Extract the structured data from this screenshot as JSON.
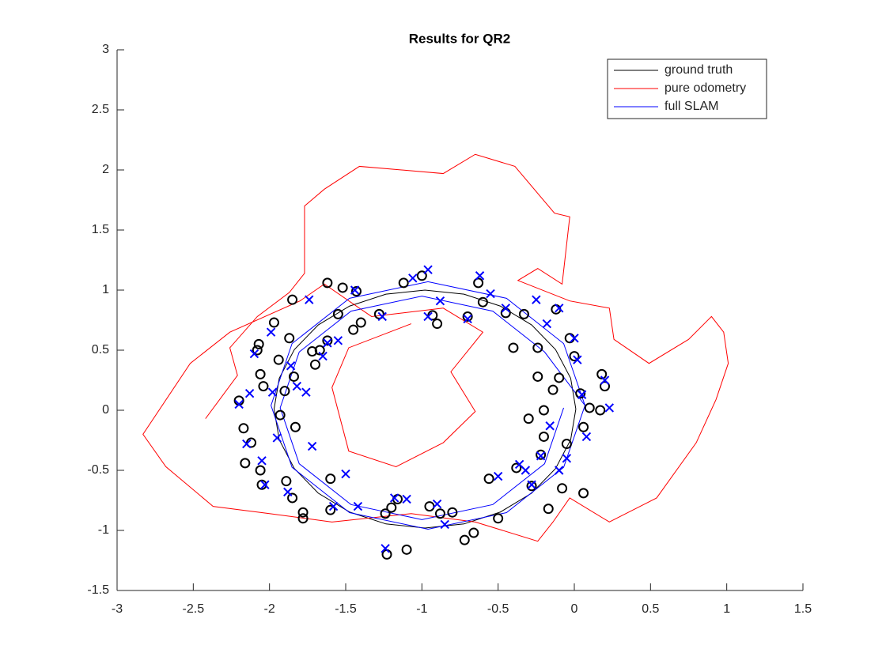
{
  "chart_data": {
    "type": "line",
    "title": "Results for QR2",
    "xlim": [
      -3,
      1.5
    ],
    "ylim": [
      -1.5,
      3
    ],
    "xticks": [
      -3,
      -2.5,
      -2,
      -1.5,
      -1,
      -0.5,
      0,
      0.5,
      1,
      1.5
    ],
    "yticks": [
      -1.5,
      -1,
      -0.5,
      0,
      0.5,
      1,
      1.5,
      2,
      2.5,
      3
    ],
    "grid": false,
    "legend": "northeast",
    "series": [
      {
        "name": "ground truth",
        "color": "#000000",
        "x": [
          0.01,
          -0.024,
          -0.123,
          -0.28,
          -0.485,
          -0.724,
          -0.98,
          -1.236,
          -1.475,
          -1.68,
          -1.837,
          -1.936,
          -1.97,
          -1.936,
          -1.837,
          -1.68,
          -1.475,
          -1.236,
          -0.98,
          -0.724,
          -0.485,
          -0.28,
          -0.123,
          -0.024,
          0.01
        ],
        "y": [
          0.01,
          0.266,
          0.505,
          0.71,
          0.867,
          0.966,
          1.0,
          0.966,
          0.867,
          0.71,
          0.505,
          0.266,
          0.01,
          -0.246,
          -0.485,
          -0.69,
          -0.847,
          -0.946,
          -0.98,
          -0.946,
          -0.847,
          -0.69,
          -0.485,
          -0.246,
          0.01
        ]
      },
      {
        "name": "pure odometry",
        "color": "#ff0000",
        "x": [
          -2.42,
          -2.21,
          -2.26,
          -2.08,
          -1.87,
          -1.77,
          -1.77,
          -1.64,
          -1.41,
          -0.86,
          -0.65,
          -0.39,
          -0.13,
          -0.03,
          -0.08,
          -0.24,
          -0.37,
          -0.03,
          0.23,
          0.26,
          0.49,
          0.75,
          0.9,
          0.98,
          1.01,
          0.93,
          0.8,
          0.54,
          0.23,
          -0.03,
          -0.14,
          -0.24,
          -0.65,
          -1.07,
          -1.59,
          -2.0,
          -2.37,
          -2.68,
          -2.83,
          -2.52,
          -2.26,
          -1.8,
          -1.64,
          -1.33,
          -0.86,
          -0.6,
          -0.81,
          -0.65,
          -0.86,
          -1.17,
          -1.48,
          -1.59,
          -1.48,
          -1.07
        ],
        "y": [
          -0.07,
          0.29,
          0.52,
          0.78,
          0.98,
          1.14,
          1.7,
          1.84,
          2.03,
          1.97,
          2.13,
          2.03,
          1.64,
          1.61,
          1.05,
          1.18,
          1.08,
          0.91,
          0.85,
          0.59,
          0.39,
          0.59,
          0.78,
          0.65,
          0.39,
          0.09,
          -0.27,
          -0.73,
          -0.93,
          -0.73,
          -0.93,
          -1.09,
          -0.93,
          -0.86,
          -0.93,
          -0.86,
          -0.8,
          -0.47,
          -0.2,
          0.39,
          0.65,
          0.91,
          1.05,
          0.78,
          0.85,
          0.65,
          0.32,
          -0.01,
          -0.27,
          -0.47,
          -0.34,
          0.19,
          0.52,
          0.72
        ]
      },
      {
        "name": "full SLAM",
        "color": "#0000ff",
        "x": [
          0.07,
          -0.07,
          -0.445,
          -0.96,
          -1.475,
          -1.852,
          -1.99,
          -1.852,
          -1.475,
          -0.96,
          -0.445,
          -0.07,
          0.07,
          -0.195,
          -0.535,
          -1.0,
          -1.465,
          -1.805,
          -1.93,
          -1.805,
          -1.465,
          -1.0,
          -0.535,
          -0.195,
          -0.07
        ],
        "y": [
          0.04,
          0.555,
          0.932,
          1.07,
          0.932,
          0.555,
          0.04,
          -0.475,
          -0.852,
          -0.99,
          -0.852,
          -0.475,
          0.04,
          0.485,
          0.825,
          0.95,
          0.825,
          0.485,
          0.02,
          -0.445,
          -0.785,
          -0.91,
          -0.785,
          -0.445,
          0.02
        ]
      }
    ],
    "markers": [
      {
        "color": "#000000",
        "marker": "o",
        "x": [
          -2.2,
          -2.17,
          -2.12,
          -2.16,
          -2.06,
          -2.05,
          -2.08,
          -2.07,
          -2.06,
          -2.04,
          -1.97,
          -1.94,
          -1.93,
          -1.9,
          -1.87,
          -1.85,
          -1.84,
          -1.83,
          -1.89,
          -1.85,
          -1.78,
          -1.78,
          -1.72,
          -1.7,
          -1.67,
          -1.62,
          -1.62,
          -1.6,
          -1.6,
          -1.55,
          -1.52,
          -1.45,
          -1.43,
          -1.4,
          -1.28,
          -1.24,
          -1.23,
          -1.2,
          -1.16,
          -1.12,
          -1.1,
          -1.0,
          -0.95,
          -0.93,
          -0.9,
          -0.88,
          -0.8,
          -0.72,
          -0.7,
          -0.66,
          -0.63,
          -0.6,
          -0.56,
          -0.5,
          -0.45,
          -0.4,
          -0.38,
          -0.33,
          -0.28,
          -0.24,
          -0.24,
          -0.22,
          -0.2,
          -0.17,
          -0.14,
          -0.12,
          -0.1,
          -0.08,
          -0.05,
          -0.03,
          0.0,
          0.04,
          0.06,
          0.06,
          0.1,
          0.17,
          0.18,
          0.2,
          -0.3,
          -0.2
        ],
        "y": [
          0.08,
          -0.15,
          -0.27,
          -0.44,
          -0.5,
          -0.62,
          0.5,
          0.55,
          0.3,
          0.2,
          0.73,
          0.42,
          -0.04,
          0.16,
          0.6,
          0.92,
          0.28,
          -0.14,
          -0.59,
          -0.73,
          -0.9,
          -0.85,
          0.49,
          0.38,
          0.5,
          1.06,
          0.58,
          -0.57,
          -0.83,
          0.8,
          1.02,
          0.67,
          0.99,
          0.73,
          0.8,
          -0.86,
          -1.2,
          -0.81,
          -0.74,
          1.06,
          -1.16,
          1.12,
          -0.8,
          0.79,
          0.72,
          -0.86,
          -0.85,
          -1.08,
          0.78,
          -1.02,
          1.06,
          0.9,
          -0.57,
          -0.9,
          0.81,
          0.52,
          -0.48,
          0.8,
          -0.63,
          0.52,
          0.28,
          -0.37,
          0.0,
          -0.82,
          0.17,
          0.84,
          0.27,
          -0.65,
          -0.28,
          0.6,
          0.45,
          0.14,
          -0.14,
          -0.69,
          0.02,
          0.0,
          0.3,
          0.2,
          -0.07,
          -0.22
        ]
      },
      {
        "color": "#0000ff",
        "marker": "x",
        "x": [
          -2.2,
          -2.15,
          -2.13,
          -2.1,
          -2.05,
          -2.03,
          -1.99,
          -1.98,
          -1.95,
          -1.88,
          -1.86,
          -1.82,
          -1.76,
          -1.72,
          -1.74,
          -1.65,
          -1.62,
          -1.58,
          -1.55,
          -1.5,
          -1.44,
          -1.42,
          -1.26,
          -1.24,
          -1.18,
          -1.1,
          -1.06,
          -0.96,
          -0.96,
          -0.9,
          -0.88,
          -0.85,
          -0.7,
          -0.62,
          -0.55,
          -0.5,
          -0.45,
          -0.36,
          -0.32,
          -0.28,
          -0.25,
          -0.22,
          -0.18,
          -0.16,
          -0.1,
          -0.05,
          0.0,
          0.02,
          0.08,
          0.2,
          0.23,
          0.05,
          -0.1
        ],
        "y": [
          0.05,
          -0.28,
          0.14,
          0.47,
          -0.42,
          -0.62,
          0.65,
          0.15,
          -0.23,
          -0.68,
          0.37,
          0.2,
          0.15,
          -0.3,
          0.92,
          0.45,
          0.56,
          -0.8,
          0.58,
          -0.53,
          1.0,
          -0.8,
          0.78,
          -1.15,
          -0.73,
          -0.74,
          1.1,
          1.17,
          0.78,
          -0.78,
          0.91,
          -0.95,
          0.76,
          1.12,
          0.97,
          -0.55,
          0.85,
          -0.45,
          -0.5,
          -0.62,
          0.92,
          -0.38,
          0.72,
          -0.13,
          0.85,
          -0.4,
          0.6,
          0.42,
          -0.22,
          0.25,
          0.02,
          0.13,
          -0.5
        ]
      }
    ]
  }
}
